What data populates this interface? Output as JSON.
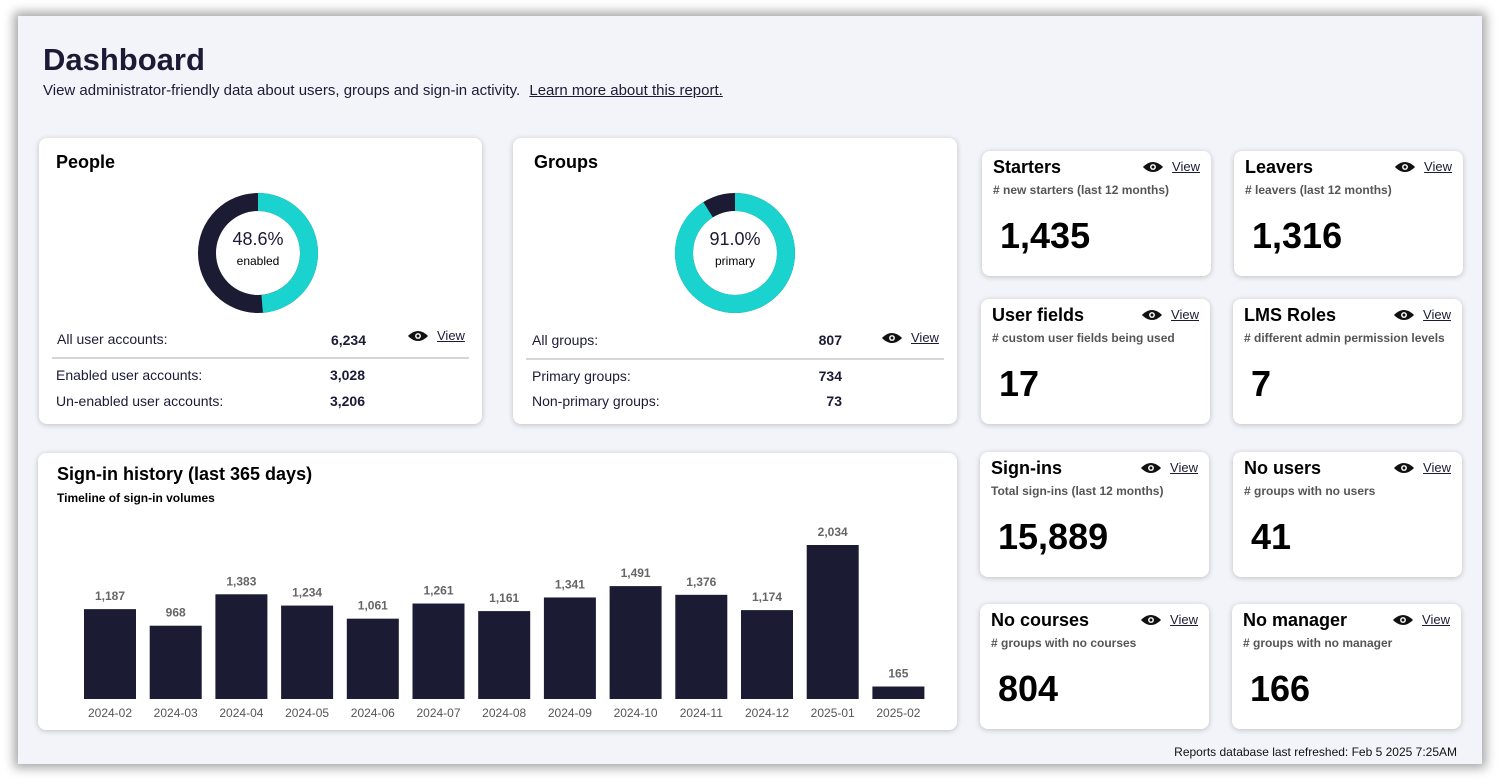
{
  "header": {
    "title": "Dashboard",
    "description": "View administrator-friendly data about users, groups and sign-in activity.",
    "learn_more": "Learn more about this report."
  },
  "people": {
    "title": "People",
    "percent": "48.6%",
    "percent_label": "enabled",
    "fraction": 0.486,
    "total_label": "All user accounts:",
    "total_value": "6,234",
    "view_label": "View",
    "rows": [
      {
        "label": "Enabled user accounts:",
        "value": "3,028"
      },
      {
        "label": "Un-enabled user accounts:",
        "value": "3,206"
      }
    ]
  },
  "groups": {
    "title": "Groups",
    "percent": "91.0%",
    "percent_label": "primary",
    "fraction": 0.91,
    "total_label": "All groups:",
    "total_value": "807",
    "view_label": "View",
    "rows": [
      {
        "label": "Primary groups:",
        "value": "734"
      },
      {
        "label": "Non-primary groups:",
        "value": "73"
      }
    ]
  },
  "stats": [
    {
      "title": "Starters",
      "subtitle": "# new starters (last 12 months)",
      "value": "1,435",
      "view_label": "View"
    },
    {
      "title": "Leavers",
      "subtitle": "# leavers (last 12 months)",
      "value": "1,316",
      "view_label": "View"
    },
    {
      "title": "User fields",
      "subtitle": "# custom user fields being used",
      "value": "17",
      "view_label": "View"
    },
    {
      "title": "LMS Roles",
      "subtitle": "# different admin permission levels",
      "value": "7",
      "view_label": "View"
    },
    {
      "title": "Sign-ins",
      "subtitle": "Total sign-ins (last 12 months)",
      "value": "15,889",
      "view_label": "View"
    },
    {
      "title": "No users",
      "subtitle": "# groups with no users",
      "value": "41",
      "view_label": "View"
    },
    {
      "title": "No courses",
      "subtitle": "# groups with no courses",
      "value": "804",
      "view_label": "View"
    },
    {
      "title": "No manager",
      "subtitle": "# groups with no manager",
      "value": "166",
      "view_label": "View"
    }
  ],
  "signin_card": {
    "title": "Sign-in history (last 365 days)",
    "subtitle": "Timeline of sign-in volumes"
  },
  "chart_data": {
    "type": "bar",
    "categories": [
      "2024-02",
      "2024-03",
      "2024-04",
      "2024-05",
      "2024-06",
      "2024-07",
      "2024-08",
      "2024-09",
      "2024-10",
      "2024-11",
      "2024-12",
      "2025-01",
      "2025-02"
    ],
    "values": [
      1187,
      968,
      1383,
      1234,
      1061,
      1261,
      1161,
      1341,
      1491,
      1376,
      1174,
      2034,
      165
    ],
    "value_labels": [
      "1,187",
      "968",
      "1,383",
      "1,234",
      "1,061",
      "1,261",
      "1,161",
      "1,341",
      "1,491",
      "1,376",
      "1,174",
      "2,034",
      "165"
    ],
    "bar_color": "#1b1b33",
    "grid": false
  },
  "colors": {
    "accent": "#1ad3cf",
    "dark": "#1b1b33"
  },
  "footer": {
    "refreshed": "Reports database last refreshed: Feb  5 2025  7:25AM"
  }
}
